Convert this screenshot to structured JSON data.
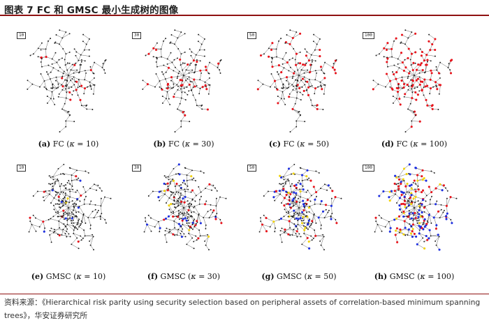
{
  "title": "图表 7 FC 和 GMSC 最小生成树的图像",
  "panels": [
    {
      "row": "FC",
      "tag": "10",
      "label": "(a)",
      "method": "FC",
      "kappa": "10",
      "red": 14,
      "blue": 0,
      "yellow": 0
    },
    {
      "row": "FC",
      "tag": "30",
      "label": "(b)",
      "method": "FC",
      "kappa": "30",
      "red": 32,
      "blue": 0,
      "yellow": 0
    },
    {
      "row": "FC",
      "tag": "50",
      "label": "(c)",
      "method": "FC",
      "kappa": "50",
      "red": 48,
      "blue": 0,
      "yellow": 0
    },
    {
      "row": "FC",
      "tag": "100",
      "label": "(d)",
      "method": "FC",
      "kappa": "100",
      "red": 95,
      "blue": 0,
      "yellow": 0
    },
    {
      "row": "GMSC",
      "tag": "10",
      "label": "(e)",
      "method": "GMSC",
      "kappa": "10",
      "red": 10,
      "blue": 8,
      "yellow": 2
    },
    {
      "row": "GMSC",
      "tag": "30",
      "label": "(f)",
      "method": "GMSC",
      "kappa": "30",
      "red": 22,
      "blue": 22,
      "yellow": 7
    },
    {
      "row": "GMSC",
      "tag": "50",
      "label": "(g)",
      "method": "GMSC",
      "kappa": "50",
      "red": 32,
      "blue": 38,
      "yellow": 14
    },
    {
      "row": "GMSC",
      "tag": "100",
      "label": "(h)",
      "method": "GMSC",
      "kappa": "100",
      "red": 55,
      "blue": 65,
      "yellow": 28
    }
  ],
  "colors": {
    "node": "#1a1a1a",
    "red": "#e8141c",
    "blue": "#1e2fe0",
    "yellow": "#f2d40c",
    "rule": "#8f1111"
  },
  "source": "资料来源：《Hierarchical risk parity using security selection based on peripheral    assets of correlation-based minimum spanning trees》，华安证券研究所"
}
